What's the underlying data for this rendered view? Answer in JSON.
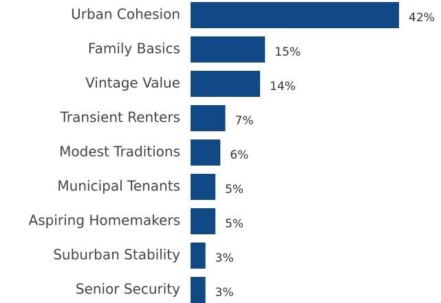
{
  "chart_data": {
    "type": "bar",
    "orientation": "horizontal",
    "color": "#104985",
    "categories": [
      "Urban Cohesion",
      "Family Basics",
      "Vintage Value",
      "Transient Renters",
      "Modest Traditions",
      "Municipal Tenants",
      "Aspiring Homemakers",
      "Suburban Stability",
      "Senior Security"
    ],
    "values": [
      42,
      15,
      14,
      7,
      6,
      5,
      5,
      3,
      3
    ],
    "value_labels": [
      "42%",
      "15%",
      "14%",
      "7%",
      "6%",
      "5%",
      "5%",
      "3%",
      "3%"
    ]
  }
}
